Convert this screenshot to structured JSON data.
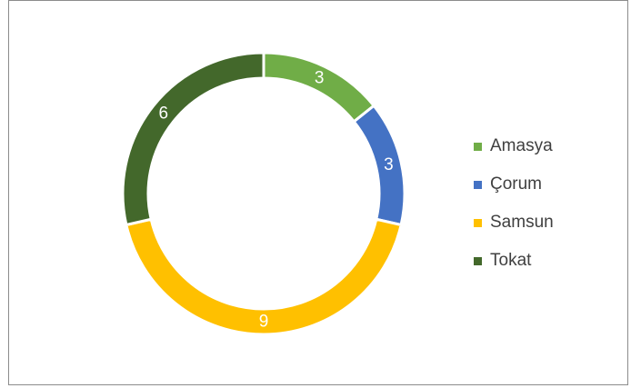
{
  "chart_data": {
    "type": "pie",
    "variant": "doughnut",
    "title": "",
    "categories": [
      "Amasya",
      "Çorum",
      "Samsun",
      "Tokat"
    ],
    "values": [
      3,
      3,
      9,
      6
    ],
    "colors": [
      "#70ad47",
      "#4472c4",
      "#ffc000",
      "#43682b"
    ],
    "data_labels": [
      "3",
      "3",
      "9",
      "6"
    ],
    "legend_position": "right"
  }
}
